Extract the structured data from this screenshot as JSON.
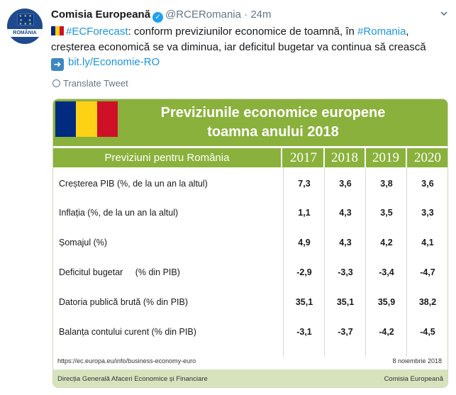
{
  "tweet": {
    "avatar_label": "ROMÂNIA",
    "author": "Comisia Europeană",
    "handle": "@RCERomania",
    "separator": "·",
    "time": "24m",
    "hashtag1": "#ECForecast",
    "text_part1": ": conform previziunilor economice de toamnă, în ",
    "hashtag2": "#Romania",
    "text_part2": ", creșterea economică se va diminua, iar deficitul bugetar va continua să crească",
    "link": "bit.ly/Economie-RO",
    "translate_label": "Translate Tweet",
    "colors": {
      "accent": "#1b95e0",
      "verified": "#1da1f2",
      "muted": "#657786"
    }
  },
  "infographic": {
    "title_line1": "Previziunile economice europene",
    "title_line2": "toamna anului 2018",
    "header_label": "Previziuni pentru România",
    "years": [
      "2017",
      "2018",
      "2019",
      "2020"
    ],
    "rows": [
      {
        "label": "Creșterea PIB (%, de la un an la altul)",
        "values": [
          "7,3",
          "3,6",
          "3,8",
          "3,6"
        ]
      },
      {
        "label": "Inflația (%, de la un an la altul)",
        "values": [
          "1,1",
          "4,3",
          "3,5",
          "3,3"
        ]
      },
      {
        "label": "Șomajul (%)",
        "values": [
          "4,9",
          "4,3",
          "4,2",
          "4,1"
        ]
      },
      {
        "label": "Deficitul bugetar     (% din PIB)",
        "values": [
          "-2,9",
          "-3,3",
          "-3,4",
          "-4,7"
        ]
      },
      {
        "label": "Datoria publică brută (% din PIB)",
        "values": [
          "35,1",
          "35,1",
          "35,9",
          "38,2"
        ]
      },
      {
        "label": "Balanța contului curent (% din PIB)",
        "values": [
          "-3,1",
          "-3,7",
          "-4,2",
          "-4,5"
        ]
      }
    ],
    "source_url": "https://ec.europa.eu/info/business-economy-euro",
    "date": "8 noiembrie 2018",
    "footer_left": "Direcția Generală Afaceri Economice și Financiare",
    "footer_right": "Comisia Europeană",
    "colors": {
      "header_green": "#8ab13c",
      "footer_band": "#d7e3bd",
      "flag_blue": "#002b7f",
      "flag_yellow": "#fcd116",
      "flag_red": "#ce1126"
    }
  }
}
